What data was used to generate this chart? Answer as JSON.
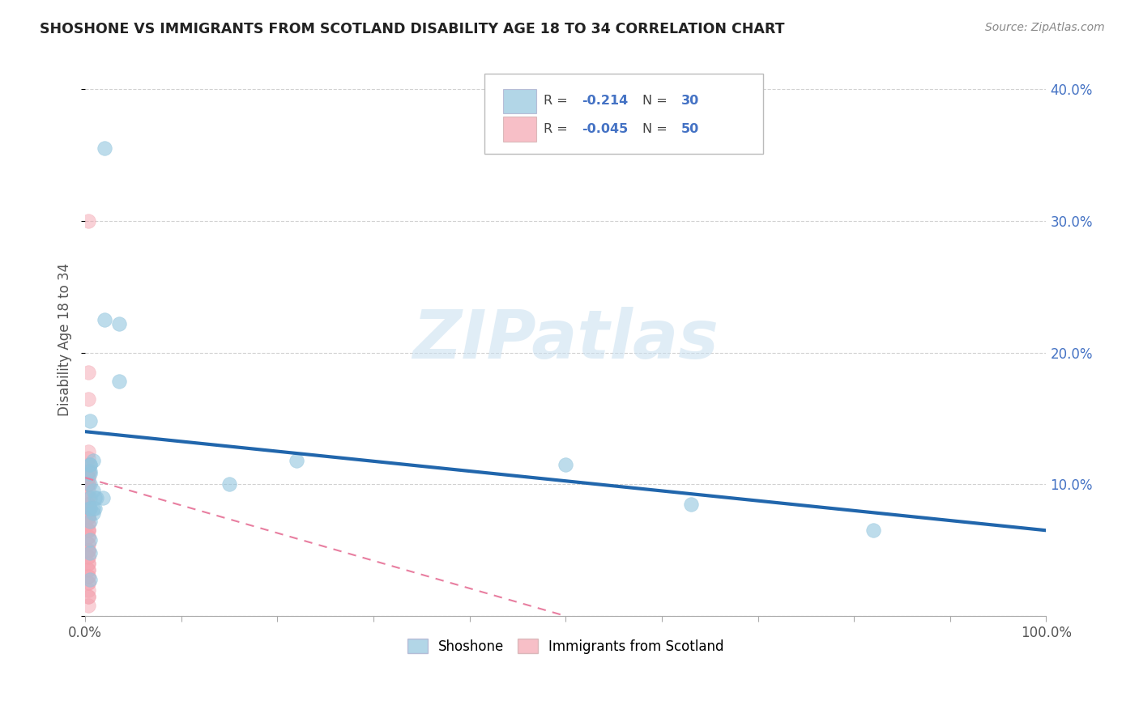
{
  "title": "SHOSHONE VS IMMIGRANTS FROM SCOTLAND DISABILITY AGE 18 TO 34 CORRELATION CHART",
  "source": "Source: ZipAtlas.com",
  "ylabel": "Disability Age 18 to 34",
  "xlim": [
    0,
    1.0
  ],
  "ylim": [
    0,
    0.42
  ],
  "yticks": [
    0.0,
    0.1,
    0.2,
    0.3,
    0.4
  ],
  "yticklabels": [
    "",
    "10.0%",
    "20.0%",
    "30.0%",
    "40.0%"
  ],
  "xticks": [
    0.0,
    0.1,
    0.2,
    0.3,
    0.4,
    0.5,
    0.6,
    0.7,
    0.8,
    0.9,
    1.0
  ],
  "xticklabels": [
    "0.0%",
    "",
    "",
    "",
    "",
    "",
    "",
    "",
    "",
    "",
    "100.0%"
  ],
  "legend_blue_r": "-0.214",
  "legend_blue_n": "30",
  "legend_pink_r": "-0.045",
  "legend_pink_n": "50",
  "blue_color": "#92c5de",
  "pink_color": "#f4a4b0",
  "trendline_blue_color": "#2166ac",
  "trendline_pink_color": "#e87ea0",
  "tick_label_color": "#4472c4",
  "watermark_color": "#c8dff0",
  "blue_scatter_x": [
    0.02,
    0.02,
    0.035,
    0.035,
    0.005,
    0.008,
    0.012,
    0.018,
    0.22,
    0.5,
    0.63,
    0.82,
    0.005,
    0.005,
    0.008,
    0.01,
    0.15,
    0.005,
    0.008,
    0.005,
    0.005,
    0.005,
    0.005,
    0.005,
    0.008,
    0.01,
    0.005,
    0.005,
    0.005,
    0.005
  ],
  "blue_scatter_y": [
    0.355,
    0.225,
    0.222,
    0.178,
    0.148,
    0.118,
    0.09,
    0.09,
    0.118,
    0.115,
    0.085,
    0.065,
    0.115,
    0.11,
    0.095,
    0.09,
    0.1,
    0.082,
    0.078,
    0.115,
    0.108,
    0.1,
    0.09,
    0.082,
    0.082,
    0.082,
    0.072,
    0.058,
    0.048,
    0.028
  ],
  "pink_scatter_x": [
    0.003,
    0.003,
    0.003,
    0.003,
    0.003,
    0.003,
    0.003,
    0.003,
    0.003,
    0.003,
    0.003,
    0.003,
    0.003,
    0.003,
    0.003,
    0.003,
    0.003,
    0.003,
    0.003,
    0.003,
    0.003,
    0.003,
    0.003,
    0.003,
    0.003,
    0.003,
    0.003,
    0.003,
    0.003,
    0.003,
    0.003,
    0.003,
    0.003,
    0.003,
    0.003,
    0.003,
    0.003,
    0.003,
    0.003,
    0.003,
    0.003,
    0.003,
    0.003,
    0.003,
    0.003,
    0.003,
    0.003,
    0.003,
    0.003,
    0.003
  ],
  "pink_scatter_y": [
    0.3,
    0.185,
    0.165,
    0.125,
    0.12,
    0.115,
    0.11,
    0.11,
    0.105,
    0.105,
    0.1,
    0.1,
    0.1,
    0.095,
    0.09,
    0.09,
    0.085,
    0.085,
    0.08,
    0.08,
    0.08,
    0.075,
    0.075,
    0.075,
    0.07,
    0.07,
    0.065,
    0.065,
    0.065,
    0.06,
    0.06,
    0.055,
    0.055,
    0.05,
    0.05,
    0.05,
    0.045,
    0.045,
    0.04,
    0.04,
    0.035,
    0.035,
    0.03,
    0.03,
    0.025,
    0.025,
    0.02,
    0.015,
    0.015,
    0.008
  ],
  "blue_trend_x0": 0.0,
  "blue_trend_x1": 1.0,
  "blue_trend_y0": 0.14,
  "blue_trend_y1": 0.065,
  "pink_trend_x0": 0.0,
  "pink_trend_x1": 0.5,
  "pink_trend_y0": 0.105,
  "pink_trend_y1": 0.0
}
